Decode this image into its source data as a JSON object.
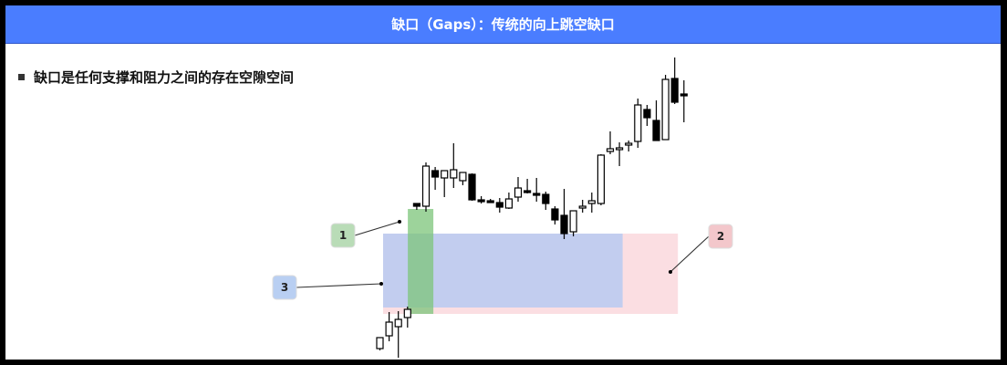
{
  "header": {
    "title": "缺口（Gaps）：传统的向上跳空缺口"
  },
  "bullet": {
    "text": "缺口是任何支撑和阻力之间的存在空隙空间"
  },
  "colors": {
    "header_bg": "#4a7dff",
    "green_zone": "#7cc47a",
    "blue_zone": "#a9c6f5",
    "pink_zone": "#f9d3d8",
    "callout_1_bg": "#b9dcb7",
    "callout_2_bg": "#f3c7cb",
    "callout_3_bg": "#b9cff2"
  },
  "callouts": [
    {
      "id": "1",
      "label": "1",
      "target": "green-zone"
    },
    {
      "id": "2",
      "label": "2",
      "target": "pink-zone"
    },
    {
      "id": "3",
      "label": "3",
      "target": "blue-zone"
    }
  ],
  "chart_data": {
    "type": "candlestick",
    "title": "",
    "xlabel": "",
    "ylabel": "",
    "ylim": [
      0,
      340
    ],
    "grid": false,
    "zones": [
      {
        "name": "green",
        "x_from": 1,
        "x_to": 4,
        "y_from": 50,
        "y_to": 165
      },
      {
        "name": "blue",
        "x_from": 0,
        "x_to": 26,
        "y_from": 57,
        "y_to": 138
      },
      {
        "name": "pink",
        "x_from": 0,
        "x_to": 32,
        "y_from": 50,
        "y_to": 138
      }
    ],
    "candles": [
      {
        "o": 12,
        "h": 23,
        "l": 10,
        "c": 24,
        "dir": "up"
      },
      {
        "o": 26,
        "h": 52,
        "l": 20,
        "c": 41,
        "dir": "up"
      },
      {
        "o": 36,
        "h": 53,
        "l": 2,
        "c": 44,
        "dir": "up"
      },
      {
        "o": 46,
        "h": 58,
        "l": 35,
        "c": 55,
        "dir": "up"
      },
      {
        "o": 168,
        "h": 170,
        "l": 164,
        "c": 171,
        "dir": "down"
      },
      {
        "o": 168,
        "h": 216,
        "l": 162,
        "c": 212,
        "dir": "up"
      },
      {
        "o": 200,
        "h": 211,
        "l": 186,
        "c": 207,
        "dir": "down"
      },
      {
        "o": 199,
        "h": 207,
        "l": 178,
        "c": 207,
        "dir": "up"
      },
      {
        "o": 199,
        "h": 237,
        "l": 188,
        "c": 208,
        "dir": "up"
      },
      {
        "o": 205,
        "h": 204,
        "l": 191,
        "c": 196,
        "dir": "up"
      },
      {
        "o": 203,
        "h": 204,
        "l": 174,
        "c": 175,
        "dir": "down"
      },
      {
        "o": 173,
        "h": 179,
        "l": 171,
        "c": 175,
        "dir": "down"
      },
      {
        "o": 174,
        "h": 176,
        "l": 173,
        "c": 174,
        "dir": "down"
      },
      {
        "o": 172,
        "h": 177,
        "l": 161,
        "c": 167,
        "dir": "down"
      },
      {
        "o": 166,
        "h": 183,
        "l": 165,
        "c": 176,
        "dir": "up"
      },
      {
        "o": 178,
        "h": 200,
        "l": 173,
        "c": 188,
        "dir": "up"
      },
      {
        "o": 185,
        "h": 198,
        "l": 182,
        "c": 185,
        "dir": "down"
      },
      {
        "o": 182,
        "h": 199,
        "l": 173,
        "c": 182,
        "dir": "down"
      },
      {
        "o": 181,
        "h": 184,
        "l": 164,
        "c": 171,
        "dir": "down"
      },
      {
        "o": 165,
        "h": 168,
        "l": 148,
        "c": 153,
        "dir": "down"
      },
      {
        "o": 158,
        "h": 187,
        "l": 132,
        "c": 138,
        "dir": "down"
      },
      {
        "o": 140,
        "h": 160,
        "l": 135,
        "c": 163,
        "dir": "up"
      },
      {
        "o": 166,
        "h": 175,
        "l": 161,
        "c": 168,
        "dir": "up"
      },
      {
        "o": 171,
        "h": 183,
        "l": 161,
        "c": 174,
        "dir": "up"
      },
      {
        "o": 171,
        "h": 225,
        "l": 169,
        "c": 224,
        "dir": "up"
      },
      {
        "o": 228,
        "h": 250,
        "l": 225,
        "c": 231,
        "dir": "up"
      },
      {
        "o": 232,
        "h": 238,
        "l": 212,
        "c": 232,
        "dir": "up"
      },
      {
        "o": 235,
        "h": 240,
        "l": 228,
        "c": 237,
        "dir": "up"
      },
      {
        "o": 239,
        "h": 286,
        "l": 232,
        "c": 279,
        "dir": "up"
      },
      {
        "o": 265,
        "h": 279,
        "l": 256,
        "c": 274,
        "dir": "down"
      },
      {
        "o": 262,
        "h": 284,
        "l": 243,
        "c": 240,
        "dir": "down"
      },
      {
        "o": 241,
        "h": 312,
        "l": 241,
        "c": 307,
        "dir": "up"
      },
      {
        "o": 308,
        "h": 331,
        "l": 280,
        "c": 282,
        "dir": "down"
      },
      {
        "o": 291,
        "h": 306,
        "l": 260,
        "c": 291,
        "dir": "down"
      }
    ]
  }
}
